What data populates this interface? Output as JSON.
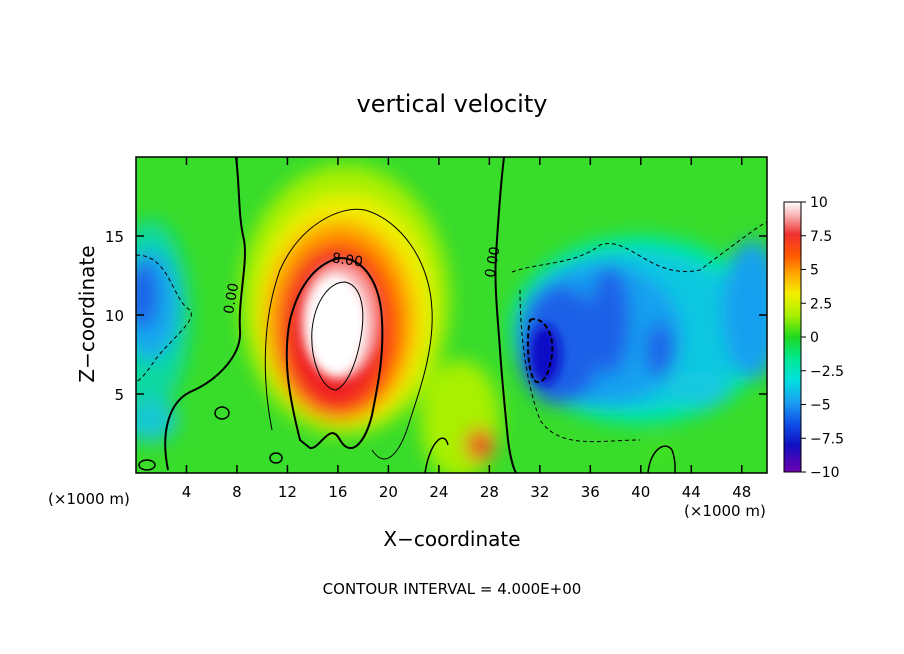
{
  "chart_data": {
    "type": "heatmap",
    "title": "vertical velocity",
    "xlabel": "X−coordinate",
    "ylabel": "Z−coordinate",
    "x_unit_left": "(×1000 m)",
    "x_unit_right": "(×1000 m)",
    "footer": "CONTOUR INTERVAL = 4.000E+00",
    "xlim": [
      0,
      50
    ],
    "ylim": [
      0,
      20
    ],
    "x_ticks": [
      4,
      8,
      12,
      16,
      20,
      24,
      28,
      32,
      36,
      40,
      44,
      48
    ],
    "y_ticks": [
      5,
      10,
      15
    ],
    "colorbar": {
      "min": -10,
      "max": 10,
      "ticks": [
        10,
        7.5,
        5,
        2.5,
        0,
        -2.5,
        -5,
        -7.5,
        -10
      ],
      "tick_labels": [
        "10",
        "7.5",
        "5",
        "2.5",
        "0",
        "−2.5",
        "−5",
        "−7.5",
        "−10"
      ]
    },
    "contour_labels": [
      {
        "text": "0.00",
        "x": 7.9,
        "y": 11
      },
      {
        "text": "8.00",
        "x": 16.7,
        "y": 13.2
      },
      {
        "text": "0.00",
        "x": 28.6,
        "y": 13.3
      }
    ],
    "features": [
      {
        "name": "updraft core",
        "x": 16.5,
        "z": 9,
        "w": 10
      },
      {
        "name": "downdraft core",
        "x": 32.5,
        "z": 7.5,
        "w": -8
      }
    ],
    "grid": false,
    "legend": "colorbar-right"
  }
}
